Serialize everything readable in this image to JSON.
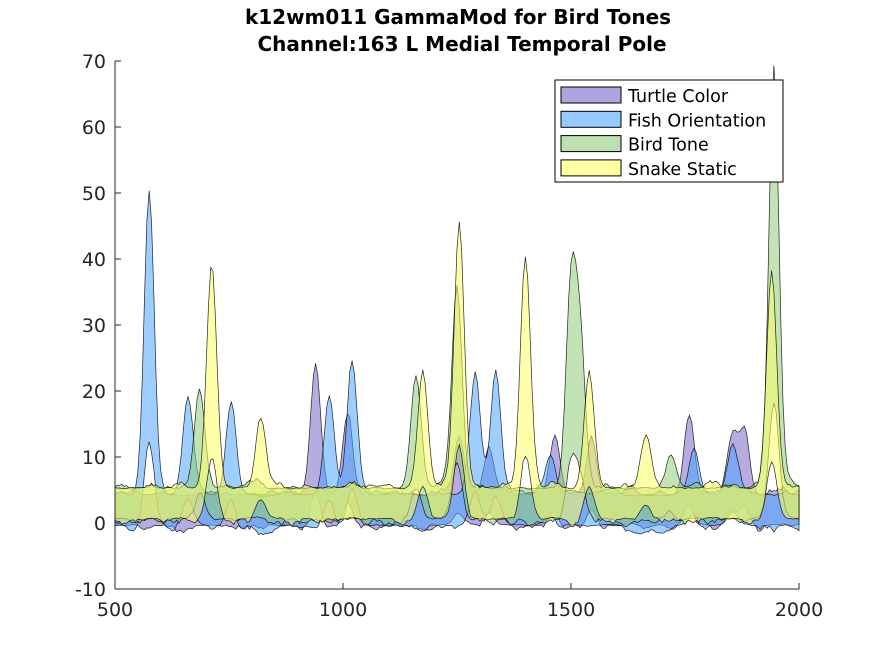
{
  "chart_data": {
    "type": "area",
    "title": "k12wm011 GammaMod for Bird Tones",
    "subtitle": "Channel:163 L Medial Temporal Pole",
    "xlabel": "",
    "ylabel": "",
    "xlim": [
      500,
      2000
    ],
    "ylim": [
      -10,
      70
    ],
    "xticks": [
      500,
      1000,
      1500,
      2000
    ],
    "yticks": [
      -10,
      0,
      10,
      20,
      30,
      40,
      50,
      60,
      70
    ],
    "grid": false,
    "legend_position": "top-right",
    "series": [
      {
        "name": "Turtle Color",
        "color": "#7b68c8",
        "band": "mean ± SEM",
        "baseline": 2,
        "peaks": [
          {
            "x": 940,
            "y": 22
          },
          {
            "x": 1010,
            "y": 14
          },
          {
            "x": 1255,
            "y": 11
          },
          {
            "x": 1320,
            "y": 9
          },
          {
            "x": 1465,
            "y": 11
          },
          {
            "x": 1545,
            "y": 10
          },
          {
            "x": 1760,
            "y": 14
          },
          {
            "x": 1855,
            "y": 11
          },
          {
            "x": 1880,
            "y": 11
          }
        ]
      },
      {
        "name": "Fish Orientation",
        "color": "#4da6ff",
        "band": "mean ± SEM",
        "baseline": 2,
        "peaks": [
          {
            "x": 575,
            "y": 48
          },
          {
            "x": 660,
            "y": 16
          },
          {
            "x": 755,
            "y": 16
          },
          {
            "x": 970,
            "y": 17
          },
          {
            "x": 1020,
            "y": 22
          },
          {
            "x": 1290,
            "y": 20
          },
          {
            "x": 1335,
            "y": 21
          },
          {
            "x": 1455,
            "y": 8
          },
          {
            "x": 1770,
            "y": 9
          },
          {
            "x": 1855,
            "y": 9
          }
        ]
      },
      {
        "name": "Bird Tone",
        "color": "#8fcc7a",
        "band": "mean ± SEM",
        "baseline": 3,
        "peaks": [
          {
            "x": 685,
            "y": 18
          },
          {
            "x": 1160,
            "y": 20
          },
          {
            "x": 1250,
            "y": 33
          },
          {
            "x": 1500,
            "y": 33
          },
          {
            "x": 1520,
            "y": 25
          },
          {
            "x": 1720,
            "y": 8
          },
          {
            "x": 1945,
            "y": 67
          }
        ]
      },
      {
        "name": "Snake Static",
        "color": "#ffff66",
        "band": "mean ± SEM",
        "baseline": 3,
        "peaks": [
          {
            "x": 712,
            "y": 37
          },
          {
            "x": 820,
            "y": 13
          },
          {
            "x": 1175,
            "y": 20
          },
          {
            "x": 1255,
            "y": 43
          },
          {
            "x": 1400,
            "y": 38
          },
          {
            "x": 1540,
            "y": 20
          },
          {
            "x": 1665,
            "y": 11
          },
          {
            "x": 1940,
            "y": 36
          }
        ]
      }
    ]
  }
}
